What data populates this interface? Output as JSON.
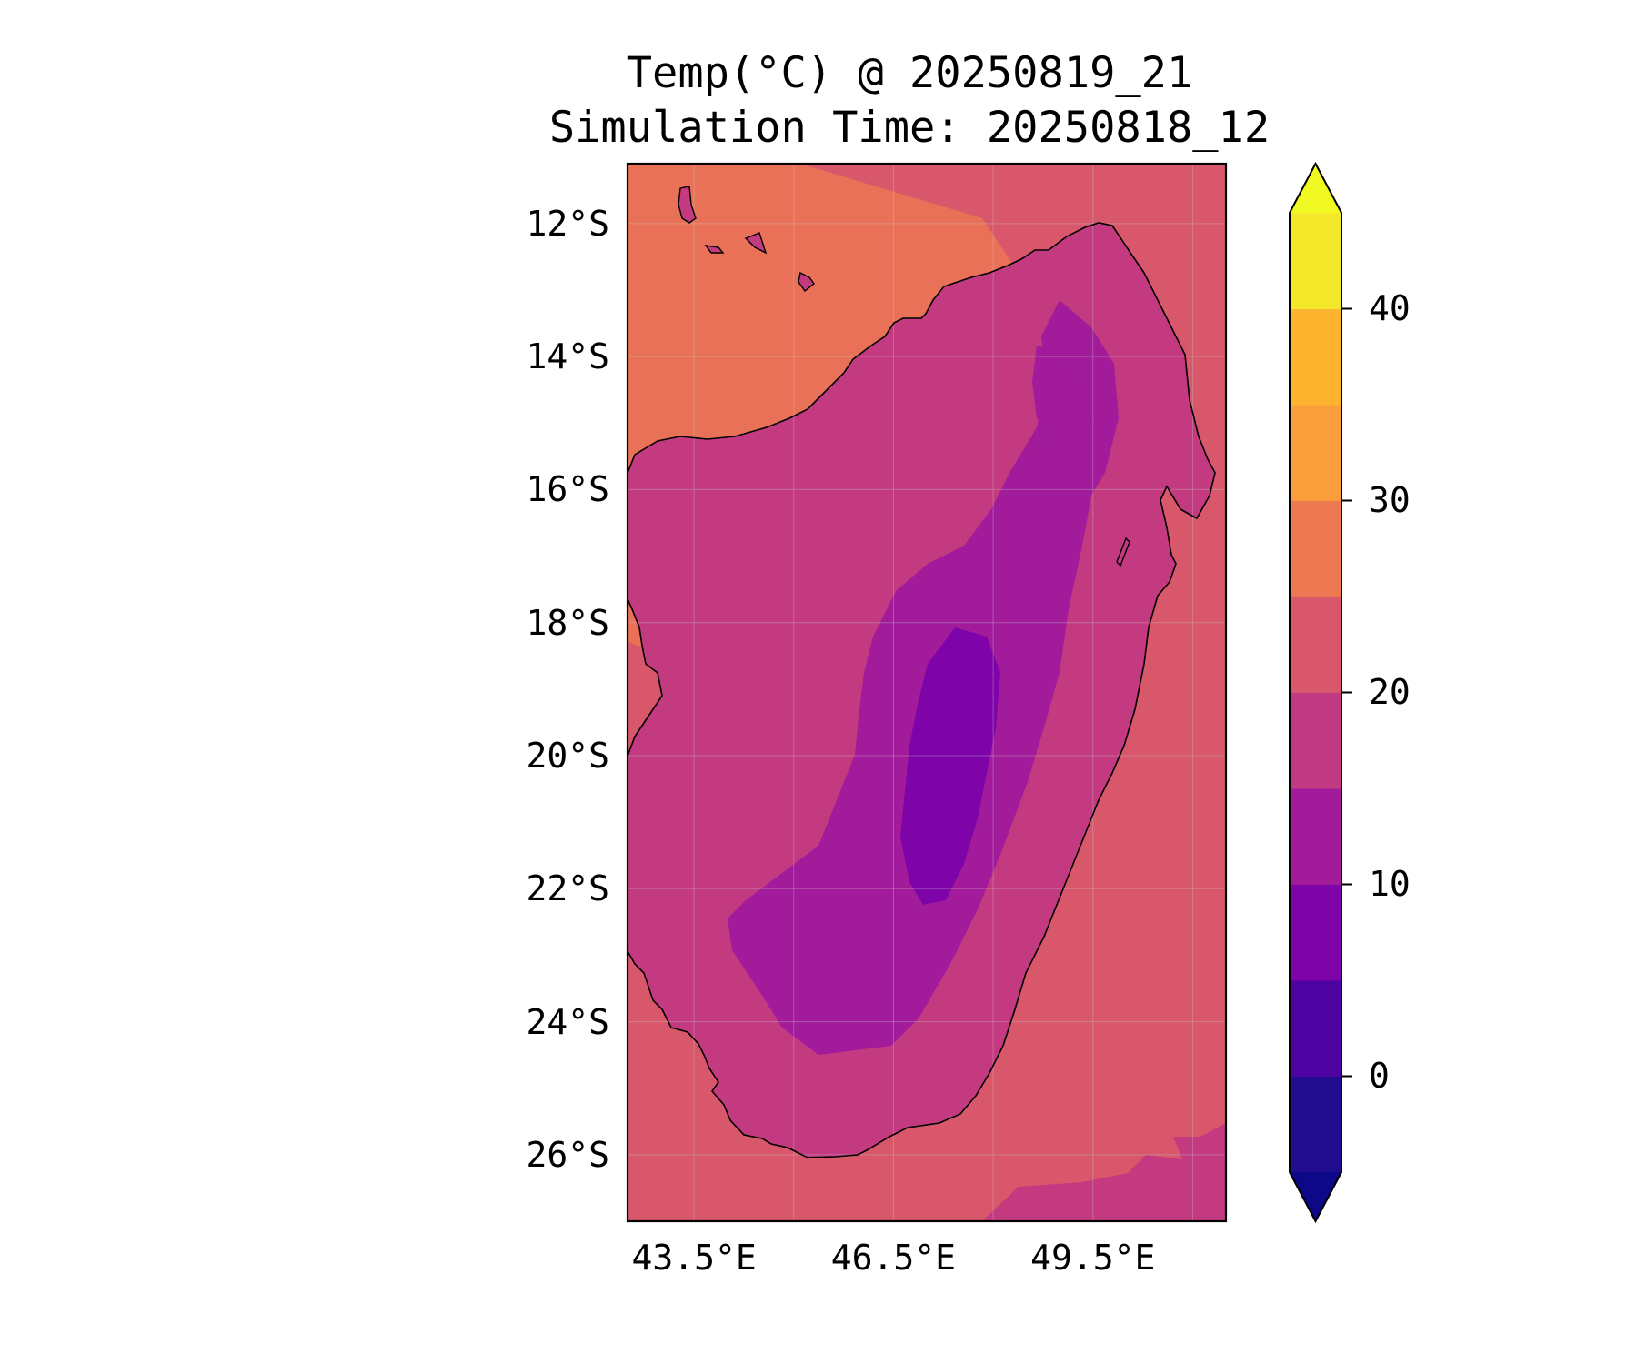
{
  "title": {
    "line1": "Temp(°C) @ 20250819_21",
    "line2": "Simulation Time: 20250818_12"
  },
  "map": {
    "region": "Madagascar",
    "lat_range": [
      -27,
      -11.1
    ],
    "lon_range": [
      42.5,
      51.5
    ],
    "lat_ticks": [
      {
        "value": -12,
        "label": "12°S"
      },
      {
        "value": -14,
        "label": "14°S"
      },
      {
        "value": -16,
        "label": "16°S"
      },
      {
        "value": -18,
        "label": "18°S"
      },
      {
        "value": -20,
        "label": "20°S"
      },
      {
        "value": -22,
        "label": "22°S"
      },
      {
        "value": -24,
        "label": "24°S"
      },
      {
        "value": -26,
        "label": "26°S"
      }
    ],
    "lon_ticks": [
      {
        "value": 43.5,
        "label": "43.5°E"
      },
      {
        "value": 46.5,
        "label": "46.5°E"
      },
      {
        "value": 49.5,
        "label": "49.5°E"
      }
    ],
    "gridlines": true,
    "coastline_color": "#000000",
    "fill_levels": {
      "ocean_default": "20-25",
      "ocean_warm_northwest": "25-30",
      "land_coast": "15-20",
      "land_highlands": "10-15",
      "land_central_plateau": "5-10"
    }
  },
  "colorbar": {
    "levels": [
      -5,
      0,
      5,
      10,
      15,
      20,
      25,
      30,
      35,
      40,
      45
    ],
    "colors": [
      "#220c90",
      "#4d02a2",
      "#7e03a8",
      "#a11b9b",
      "#c03a83",
      "#d8576b",
      "#ed7953",
      "#fa9e3b",
      "#fdb42f",
      "#f3e92a"
    ],
    "under_color": "#0d0887",
    "over_color": "#f0f921",
    "extend": "both",
    "ticks": [
      {
        "value": 0,
        "label": "0"
      },
      {
        "value": 10,
        "label": "10"
      },
      {
        "value": 20,
        "label": "20"
      },
      {
        "value": 30,
        "label": "30"
      },
      {
        "value": 40,
        "label": "40"
      }
    ]
  }
}
